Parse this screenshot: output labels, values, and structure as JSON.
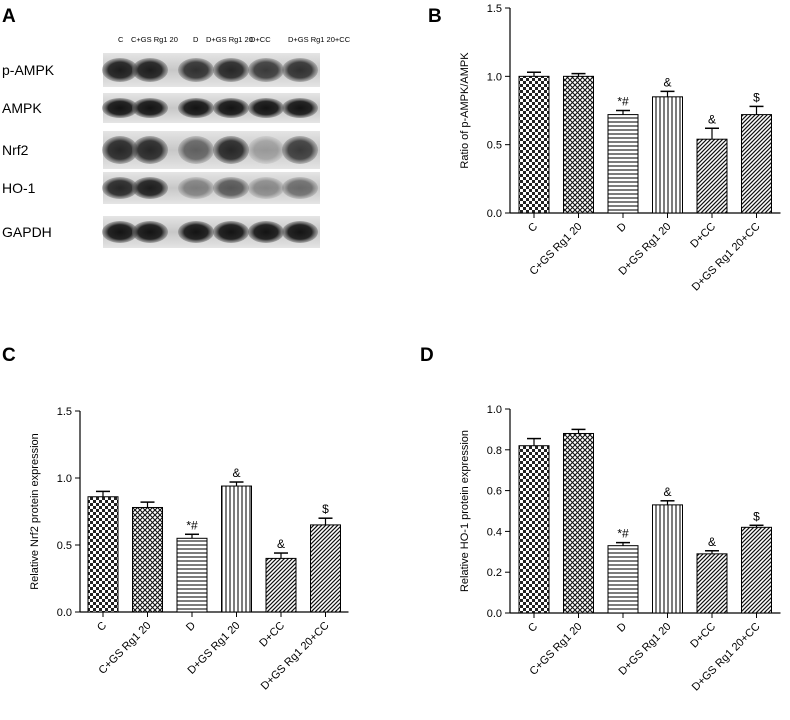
{
  "panels": {
    "a": "A",
    "b": "B",
    "c": "C",
    "d": "D"
  },
  "blot": {
    "lane_labels": [
      "C",
      "C+GS Rg1 20",
      "D",
      "D+GS Rg1 20",
      "D+CC",
      "D+GS Rg1 20+CC"
    ],
    "band_labels": [
      "p-AMPK",
      "AMPK",
      "Nrf2",
      "HO-1",
      "GAPDH"
    ]
  },
  "chart_data": [
    {
      "type": "bar",
      "id": "B",
      "categories": [
        "C",
        "C+GS Rg1 20",
        "D",
        "D+GS Rg1 20",
        "D+CC",
        "D+GS Rg1 20+CC"
      ],
      "values": [
        1.0,
        1.0,
        0.72,
        0.85,
        0.54,
        0.72
      ],
      "errors": [
        0.03,
        0.02,
        0.03,
        0.04,
        0.08,
        0.06
      ],
      "annotations": [
        "",
        "",
        "*#",
        "&",
        "&",
        "$"
      ],
      "patterns": [
        "check",
        "dots",
        "hlines",
        "vlines",
        "diag",
        "diag"
      ],
      "ylabel": "Ratio of p-AMPK/AMPK",
      "ylim": [
        0,
        1.5
      ],
      "yticks": [
        "0.0",
        "0.5",
        "1.0",
        "1.5"
      ],
      "ytick_values": [
        0,
        0.5,
        1.0,
        1.5
      ]
    },
    {
      "type": "bar",
      "id": "C",
      "categories": [
        "C",
        "C+GS Rg1 20",
        "D",
        "D+GS Rg1 20",
        "D+CC",
        "D+GS Rg1 20+CC"
      ],
      "values": [
        0.86,
        0.78,
        0.55,
        0.94,
        0.4,
        0.65
      ],
      "errors": [
        0.04,
        0.04,
        0.03,
        0.03,
        0.04,
        0.05
      ],
      "annotations": [
        "",
        "",
        "*#",
        "&",
        "&",
        "$"
      ],
      "patterns": [
        "check",
        "dots",
        "hlines",
        "vlines",
        "diag",
        "diag"
      ],
      "ylabel": "Relative Nrf2 protein expression",
      "ylim": [
        0,
        1.5
      ],
      "yticks": [
        "0.0",
        "0.5",
        "1.0",
        "1.5"
      ],
      "ytick_values": [
        0,
        0.5,
        1.0,
        1.5
      ]
    },
    {
      "type": "bar",
      "id": "D",
      "categories": [
        "C",
        "C+GS Rg1 20",
        "D",
        "D+GS Rg1 20",
        "D+CC",
        "D+GS Rg1 20+CC"
      ],
      "values": [
        0.82,
        0.88,
        0.33,
        0.53,
        0.29,
        0.42
      ],
      "errors": [
        0.035,
        0.02,
        0.015,
        0.02,
        0.015,
        0.01
      ],
      "annotations": [
        "",
        "",
        "*#",
        "&",
        "&",
        "$"
      ],
      "patterns": [
        "check",
        "dots",
        "hlines",
        "vlines",
        "diag",
        "diag"
      ],
      "ylabel": "Relative HO-1 protein expression",
      "ylim": [
        0,
        1.0
      ],
      "yticks": [
        "0.0",
        "0.2",
        "0.4",
        "0.6",
        "0.8",
        "1.0"
      ],
      "ytick_values": [
        0,
        0.2,
        0.4,
        0.6,
        0.8,
        1.0
      ]
    }
  ]
}
